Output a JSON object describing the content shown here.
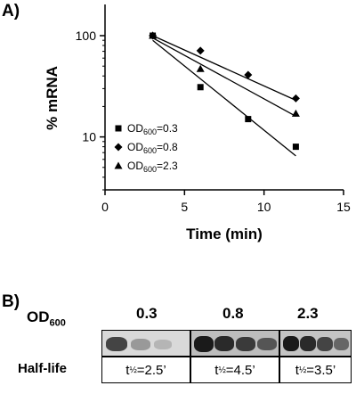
{
  "panel_a": {
    "label": "A)"
  },
  "chart_data": {
    "type": "scatter",
    "title": "",
    "xlabel": "Time (min)",
    "ylabel": "% mRNA",
    "xlim": [
      0,
      15
    ],
    "ylim": [
      3,
      100
    ],
    "y_scale": "log",
    "x_ticks": [
      0,
      5,
      10,
      15
    ],
    "y_ticks": [
      10,
      100
    ],
    "legend_placement": "bottom-left",
    "series": [
      {
        "name": "OD600=0.3",
        "legend_main": "OD",
        "legend_sub": "600",
        "legend_tail": "=0.3",
        "marker": "square",
        "x": [
          3,
          6,
          9,
          12
        ],
        "y": [
          100,
          31,
          15,
          8
        ],
        "fit": [
          [
            3,
            90
          ],
          [
            12,
            6.5
          ]
        ]
      },
      {
        "name": "OD600=0.8",
        "legend_main": "OD",
        "legend_sub": "600",
        "legend_tail": "=0.8",
        "marker": "diamond",
        "x": [
          3,
          6,
          9,
          12
        ],
        "y": [
          100,
          71,
          41,
          24
        ],
        "fit": [
          [
            3,
            100
          ],
          [
            12,
            23
          ]
        ]
      },
      {
        "name": "OD600=2.3",
        "legend_main": "OD",
        "legend_sub": "600",
        "legend_tail": "=2.3",
        "marker": "triangle",
        "x": [
          3,
          6,
          12
        ],
        "y": [
          100,
          47,
          17
        ],
        "fit": [
          [
            3,
            95
          ],
          [
            12,
            16
          ]
        ]
      }
    ]
  },
  "panel_b": {
    "label": "B)",
    "od_label_main": "OD",
    "od_label_sub": "600",
    "half_life_label": "Half-life",
    "lanes": [
      {
        "od": "0.3",
        "t_main": "t",
        "t_sub": "½",
        "t_value": "=2.5’"
      },
      {
        "od": "0.8",
        "t_main": "t",
        "t_sub": "½",
        "t_value": "=4.5’"
      },
      {
        "od": "2.3",
        "t_main": "t",
        "t_sub": "½",
        "t_value": "=3.5’"
      }
    ]
  }
}
